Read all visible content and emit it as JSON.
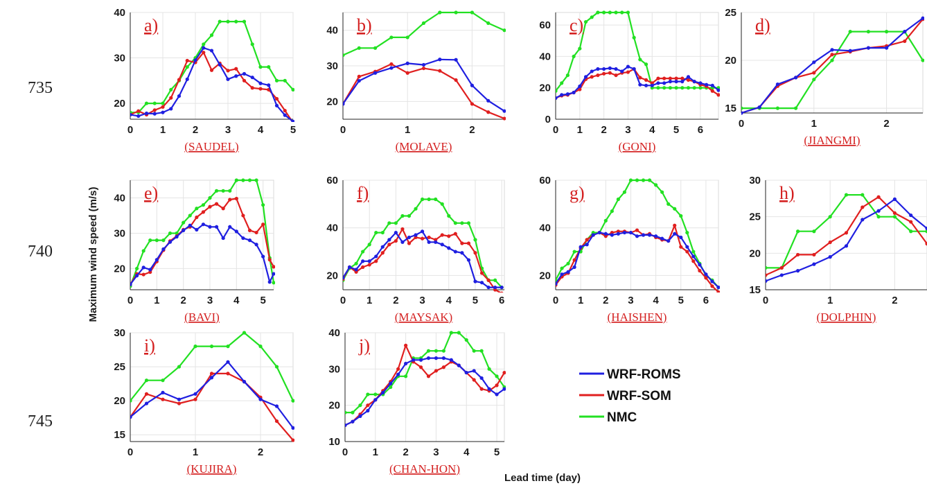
{
  "figure": {
    "ylabel": "Maximum wind speed (m/s)",
    "xlabel": "Lead time (day)",
    "line_numbers": [
      "735",
      "740",
      "745"
    ],
    "legend": [
      "WRF-ROMS",
      "WRF-SOM",
      "NMC"
    ],
    "colors": {
      "WRF-ROMS": "#1f1fe0",
      "WRF-SOM": "#e01f1f",
      "NMC": "#22e022",
      "label": "#d42020"
    }
  },
  "chart_data": [
    {
      "type": "line",
      "label": "a)",
      "storm": "(SAUDEL)",
      "xlim": [
        0,
        5
      ],
      "ylim": [
        16.5,
        40
      ],
      "xticks": [
        0,
        1,
        2,
        3,
        4,
        5
      ],
      "yticks": [
        20,
        30,
        40
      ],
      "x": [
        0,
        0.25,
        0.5,
        0.75,
        1,
        1.25,
        1.5,
        1.75,
        2,
        2.25,
        2.5,
        2.75,
        3,
        3.25,
        3.5,
        3.75,
        4,
        4.25,
        4.5,
        4.75,
        5
      ],
      "series": [
        {
          "name": "WRF-ROMS",
          "values": [
            17.5,
            17.2,
            17.8,
            17.7,
            18,
            18.8,
            21.6,
            25.3,
            29.5,
            32.2,
            31.6,
            28.5,
            25.3,
            26,
            26.5,
            25.7,
            24.4,
            24,
            19.5,
            17.4,
            16
          ]
        },
        {
          "name": "WRF-SOM",
          "values": [
            17.5,
            18.3,
            17.5,
            18.5,
            19.2,
            21.2,
            25.2,
            29.4,
            29,
            31.2,
            27.3,
            28.8,
            27.2,
            27.6,
            25,
            23.4,
            23.2,
            23,
            21,
            18.4,
            15.7
          ]
        },
        {
          "name": "NMC",
          "values": [
            18,
            18,
            20,
            20,
            20,
            23,
            25,
            28,
            30,
            33,
            35,
            38,
            38,
            38,
            38,
            33,
            28,
            28,
            25,
            25,
            23
          ]
        }
      ]
    },
    {
      "type": "line",
      "label": "b)",
      "storm": "(MOLAVE)",
      "xlim": [
        0,
        2.5
      ],
      "ylim": [
        15,
        45
      ],
      "xticks": [
        0,
        1,
        2
      ],
      "yticks": [
        20,
        30,
        40
      ],
      "x": [
        0,
        0.25,
        0.5,
        0.75,
        1,
        1.25,
        1.5,
        1.75,
        2,
        2.25,
        2.5
      ],
      "series": [
        {
          "name": "WRF-ROMS",
          "values": [
            19.3,
            25.8,
            28,
            29.4,
            30.7,
            30.3,
            31.8,
            31.7,
            24.5,
            20.2,
            17.3
          ]
        },
        {
          "name": "WRF-SOM",
          "values": [
            19.3,
            27,
            28.4,
            30.5,
            28,
            29.3,
            28.6,
            26,
            19.3,
            17,
            15.2
          ]
        },
        {
          "name": "NMC",
          "values": [
            33,
            35,
            35,
            38,
            38,
            42,
            45,
            45,
            45,
            42,
            40
          ]
        }
      ]
    },
    {
      "type": "line",
      "label": "c)",
      "storm": "(GONI)",
      "xlim": [
        0,
        6.75
      ],
      "ylim": [
        0,
        68
      ],
      "xticks": [
        0,
        1,
        2,
        3,
        4,
        5,
        6
      ],
      "yticks": [
        0,
        20,
        40,
        60
      ],
      "x": [
        0,
        0.25,
        0.5,
        0.75,
        1,
        1.25,
        1.5,
        1.75,
        2,
        2.25,
        2.5,
        2.75,
        3,
        3.25,
        3.5,
        3.75,
        4,
        4.25,
        4.5,
        4.75,
        5,
        5.25,
        5.5,
        5.75,
        6,
        6.25,
        6.5,
        6.75
      ],
      "series": [
        {
          "name": "WRF-ROMS",
          "values": [
            13.5,
            15.5,
            16,
            17,
            21,
            27,
            30.5,
            32,
            32,
            32.5,
            32,
            30.5,
            33.5,
            32,
            22,
            21.5,
            21.5,
            23,
            23,
            24,
            24,
            24,
            27,
            24,
            23,
            22,
            21.5,
            18.5
          ]
        },
        {
          "name": "WRF-SOM",
          "values": [
            13.5,
            15,
            15.5,
            17,
            19,
            25.5,
            27,
            28,
            29,
            29.5,
            28,
            29.5,
            30,
            32,
            26.5,
            25,
            23,
            26,
            26,
            26,
            26,
            26,
            25,
            24,
            22,
            21,
            18,
            15.5
          ]
        },
        {
          "name": "NMC",
          "values": [
            18,
            23,
            28,
            40,
            45,
            62,
            65,
            68,
            68,
            68,
            68,
            68,
            68,
            52,
            38,
            35,
            20,
            20,
            20,
            20,
            20,
            20,
            20,
            20,
            20,
            20,
            20,
            20
          ]
        }
      ]
    },
    {
      "type": "line",
      "label": "d)",
      "storm": "(JIANGMI)",
      "xlim": [
        0,
        2.5
      ],
      "ylim": [
        14.5,
        25
      ],
      "xticks": [
        0,
        1,
        2
      ],
      "yticks": [
        15,
        20,
        25
      ],
      "x": [
        0,
        0.25,
        0.5,
        0.75,
        1,
        1.25,
        1.5,
        1.75,
        2,
        2.25,
        2.5
      ],
      "series": [
        {
          "name": "WRF-ROMS",
          "values": [
            14.5,
            15.1,
            17.5,
            18.2,
            19.8,
            21.1,
            21,
            21.3,
            21.3,
            23,
            24.4
          ]
        },
        {
          "name": "WRF-SOM",
          "values": [
            14.5,
            15.1,
            17.3,
            18.2,
            18.7,
            20.6,
            20.9,
            21.3,
            21.5,
            22,
            24.3
          ]
        },
        {
          "name": "NMC",
          "values": [
            15,
            15,
            15,
            15,
            18,
            20,
            23,
            23,
            23,
            23,
            20
          ]
        }
      ]
    },
    {
      "type": "line",
      "label": "e)",
      "storm": "(BAVI)",
      "xlim": [
        0,
        5.4
      ],
      "ylim": [
        14,
        45
      ],
      "xticks": [
        0,
        1,
        2,
        3,
        4,
        5
      ],
      "yticks": [
        20,
        30,
        40
      ],
      "x": [
        0,
        0.25,
        0.5,
        0.75,
        1,
        1.25,
        1.5,
        1.75,
        2,
        2.25,
        2.5,
        2.75,
        3,
        3.25,
        3.5,
        3.75,
        4,
        4.25,
        4.5,
        4.75,
        5,
        5.25,
        5.4
      ],
      "series": [
        {
          "name": "WRF-ROMS",
          "values": [
            15.5,
            18,
            20.3,
            19.7,
            22.5,
            25.5,
            27.5,
            29,
            30.8,
            32.2,
            31,
            32.5,
            31.8,
            31.8,
            28.6,
            31.8,
            30.5,
            28.6,
            28,
            26.8,
            23.4,
            16.2,
            18.5
          ]
        },
        {
          "name": "WRF-SOM",
          "values": [
            15.5,
            18.5,
            18.3,
            19,
            22,
            25.2,
            27.8,
            29.2,
            31,
            31.8,
            34.5,
            36,
            37.5,
            38.3,
            37,
            39.5,
            39.8,
            35,
            30.8,
            30.2,
            32.5,
            22.5,
            20.5
          ]
        },
        {
          "name": "NMC",
          "values": [
            15,
            20,
            25,
            28,
            28,
            28,
            30,
            30,
            33,
            35,
            37,
            38,
            40,
            42,
            42,
            42,
            45,
            45,
            45,
            45,
            38,
            23,
            16
          ]
        }
      ]
    },
    {
      "type": "line",
      "label": "f)",
      "storm": "(MAYSAK)",
      "xlim": [
        0,
        6.1
      ],
      "ylim": [
        14,
        60
      ],
      "xticks": [
        0,
        1,
        2,
        3,
        4,
        5,
        6
      ],
      "yticks": [
        20,
        40,
        60
      ],
      "x": [
        0,
        0.25,
        0.5,
        0.75,
        1,
        1.25,
        1.5,
        1.75,
        2,
        2.25,
        2.5,
        2.75,
        3,
        3.25,
        3.5,
        3.75,
        4,
        4.25,
        4.5,
        4.75,
        5,
        5.25,
        5.5,
        5.75,
        6
      ],
      "series": [
        {
          "name": "WRF-ROMS",
          "values": [
            19,
            23.5,
            22.5,
            26,
            26,
            28,
            32,
            35,
            38,
            34,
            36,
            37,
            38.5,
            34,
            34,
            33,
            31.5,
            30,
            29.5,
            26.5,
            17.5,
            17,
            15,
            15,
            15
          ]
        },
        {
          "name": "WRF-SOM",
          "values": [
            18.5,
            23.5,
            21.5,
            23.5,
            24.5,
            26,
            29.5,
            33,
            34.5,
            39.5,
            33.5,
            36,
            35.5,
            36,
            35,
            37,
            36.5,
            37.5,
            33.5,
            33.5,
            29.5,
            21,
            18,
            14,
            12.5
          ]
        },
        {
          "name": "NMC",
          "values": [
            18,
            23,
            25,
            30,
            33,
            38,
            38,
            42,
            42,
            45,
            45,
            48,
            52,
            52,
            52,
            50,
            45,
            42,
            42,
            42,
            35,
            23,
            18,
            18,
            15
          ]
        }
      ]
    },
    {
      "type": "line",
      "label": "g)",
      "storm": "(HAISHEN)",
      "xlim": [
        0,
        6.5
      ],
      "ylim": [
        14,
        60
      ],
      "xticks": [
        0,
        1,
        2,
        3,
        4,
        5,
        6
      ],
      "yticks": [
        20,
        40,
        60
      ],
      "x": [
        0,
        0.25,
        0.5,
        0.75,
        1,
        1.25,
        1.5,
        1.75,
        2,
        2.25,
        2.5,
        2.75,
        3,
        3.25,
        3.5,
        3.75,
        4,
        4.25,
        4.5,
        4.75,
        5,
        5.25,
        5.5,
        5.75,
        6,
        6.25,
        6.5
      ],
      "series": [
        {
          "name": "WRF-ROMS",
          "values": [
            16.5,
            20.5,
            21.5,
            23.5,
            32,
            33,
            37,
            38,
            37.5,
            37,
            37.5,
            38,
            38,
            36.5,
            37,
            37,
            36.5,
            35.5,
            34.5,
            37.5,
            36,
            32,
            28,
            24.5,
            20.5,
            17.5,
            15
          ]
        },
        {
          "name": "WRF-SOM",
          "values": [
            16,
            19.5,
            21,
            26.5,
            31.5,
            35,
            37,
            38,
            36.5,
            38,
            38.5,
            38.5,
            38,
            39,
            37,
            37.5,
            36,
            35,
            34.5,
            41,
            32,
            30,
            26,
            22,
            19,
            15.5,
            13
          ]
        },
        {
          "name": "NMC",
          "values": [
            18,
            23,
            25,
            30,
            30,
            35,
            38,
            38,
            43,
            47,
            52,
            55,
            60,
            60,
            60,
            60,
            58,
            55,
            50,
            48,
            45,
            38,
            30,
            25,
            20,
            18,
            15
          ]
        }
      ]
    },
    {
      "type": "line",
      "label": "h)",
      "storm": "(DOLPHIN)",
      "xlim": [
        0,
        2.5
      ],
      "ylim": [
        15,
        30
      ],
      "xticks": [
        0,
        1,
        2
      ],
      "yticks": [
        15,
        20,
        25,
        30
      ],
      "x": [
        0,
        0.25,
        0.5,
        0.75,
        1,
        1.25,
        1.5,
        1.75,
        2,
        2.25,
        2.5
      ],
      "series": [
        {
          "name": "WRF-ROMS",
          "values": [
            16.2,
            17,
            17.6,
            18.5,
            19.5,
            21,
            24.6,
            25.8,
            27.4,
            25.2,
            23.4
          ]
        },
        {
          "name": "WRF-SOM",
          "values": [
            17,
            18,
            19.8,
            19.8,
            21.5,
            22.8,
            26.3,
            27.7,
            25.5,
            24.3,
            21.3
          ]
        },
        {
          "name": "NMC",
          "values": [
            18,
            18,
            23,
            23,
            25,
            28,
            28,
            25,
            25,
            23,
            23
          ]
        }
      ]
    },
    {
      "type": "line",
      "label": "i)",
      "storm": "(KUJIRA)",
      "xlim": [
        0,
        2.5
      ],
      "ylim": [
        14,
        30
      ],
      "xticks": [
        0,
        1,
        2
      ],
      "yticks": [
        15,
        20,
        25,
        30
      ],
      "x": [
        0,
        0.25,
        0.5,
        0.75,
        1,
        1.25,
        1.5,
        1.75,
        2,
        2.25,
        2.5
      ],
      "series": [
        {
          "name": "WRF-ROMS",
          "values": [
            17.6,
            19.6,
            21.2,
            20.2,
            21,
            23.4,
            25.7,
            22.8,
            20.2,
            19.2,
            16
          ]
        },
        {
          "name": "WRF-SOM",
          "values": [
            17.6,
            21,
            20.2,
            19.6,
            20.2,
            24,
            24,
            22.8,
            20.5,
            17,
            14.2
          ]
        },
        {
          "name": "NMC",
          "values": [
            20,
            23,
            23,
            25,
            28,
            28,
            28,
            30,
            28,
            25,
            20
          ]
        }
      ]
    },
    {
      "type": "line",
      "label": "j)",
      "storm": "(CHAN-HON)",
      "xlim": [
        0,
        5.25
      ],
      "ylim": [
        10,
        40
      ],
      "xticks": [
        0,
        1,
        2,
        3,
        4,
        5
      ],
      "yticks": [
        10,
        20,
        30,
        40
      ],
      "x": [
        0,
        0.25,
        0.5,
        0.75,
        1,
        1.25,
        1.5,
        1.75,
        2,
        2.25,
        2.5,
        2.75,
        3,
        3.25,
        3.5,
        3.75,
        4,
        4.25,
        4.5,
        4.75,
        5,
        5.25
      ],
      "series": [
        {
          "name": "WRF-ROMS",
          "values": [
            14.5,
            15.5,
            17,
            18.5,
            21.5,
            23.5,
            26,
            28.5,
            31.5,
            32.5,
            32.5,
            33,
            33,
            33,
            32.5,
            31,
            29,
            29.5,
            27.5,
            24.5,
            23,
            24.5
          ]
        },
        {
          "name": "WRF-SOM",
          "values": [
            14.5,
            15.5,
            17.5,
            20,
            21.5,
            24,
            26.5,
            30,
            36.5,
            32,
            30.5,
            28,
            29.5,
            30.5,
            32,
            31,
            29,
            27,
            24.5,
            24,
            25.5,
            29
          ]
        },
        {
          "name": "NMC",
          "values": [
            18,
            18,
            20,
            23,
            23,
            23,
            25,
            28,
            28,
            33,
            33,
            35,
            35,
            35,
            40,
            40,
            38,
            35,
            35,
            30,
            28,
            25
          ]
        }
      ]
    }
  ]
}
